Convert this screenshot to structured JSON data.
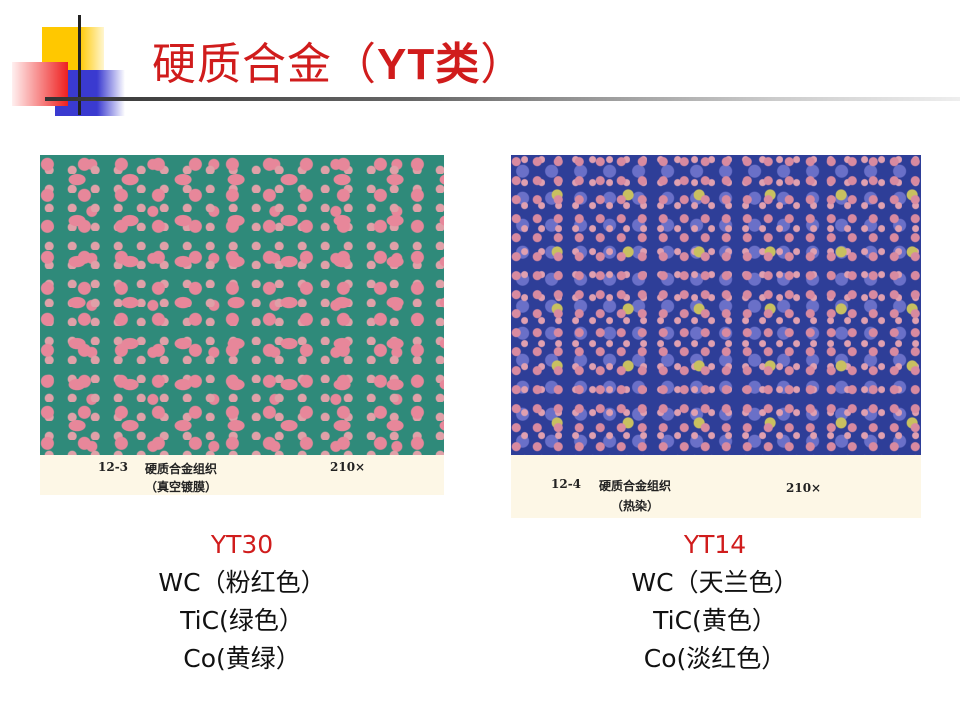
{
  "title": {
    "main": "硬质合金（",
    "bold": "YT类",
    "close": "）"
  },
  "accent_color": "#d01c1c",
  "left": {
    "caption": {
      "fig": "12-3",
      "text": "硬质合金组织",
      "sub": "（真空镀膜）",
      "mag": "210×"
    },
    "name": "YT30",
    "lines": [
      "WC（粉红色）",
      "TiC(绿色）",
      "Co(黄绿）"
    ]
  },
  "right": {
    "caption": {
      "fig": "12-4",
      "text": "硬质合金组织",
      "sub": "（热染）",
      "mag": "210×"
    },
    "name": "YT14",
    "lines": [
      "WC（天兰色）",
      "TiC(黄色）",
      "Co(淡红色）"
    ]
  }
}
